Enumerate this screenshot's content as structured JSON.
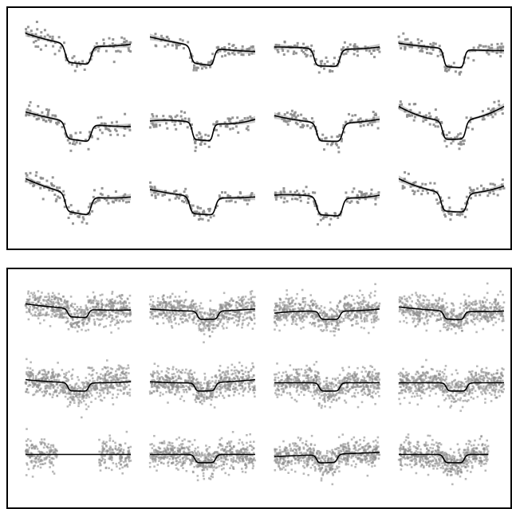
{
  "chart_data": [
    {
      "type": "scatter",
      "grid": false,
      "layout": "small-multiples",
      "rows": 3,
      "cols": 4,
      "x_range": [
        -1,
        1
      ],
      "colors": {
        "points": "#8a8a8a",
        "band": "#bdbdbd",
        "line": "#000000"
      },
      "subplots": [
        {
          "baseline": [
            0.2,
            -0.3,
            0.35,
            0.0
          ],
          "depth": 1.0,
          "center": 0.0,
          "width": 0.5,
          "noise": 0.25,
          "n": 100
        },
        {
          "baseline": [
            0.1,
            -0.4,
            0.15,
            0.0
          ],
          "depth": 0.95,
          "center": 0.0,
          "width": 0.45,
          "noise": 0.2,
          "n": 100
        },
        {
          "baseline": [
            0.0,
            -0.1,
            0.1,
            0.1
          ],
          "depth": 0.95,
          "center": 0.0,
          "width": 0.5,
          "noise": 0.22,
          "n": 100
        },
        {
          "baseline": [
            0.0,
            -0.2,
            0.1,
            0.0
          ],
          "depth": 1.0,
          "center": 0.05,
          "width": 0.4,
          "noise": 0.22,
          "n": 100
        },
        {
          "baseline": [
            0.0,
            -0.4,
            0.2,
            0.0
          ],
          "depth": 0.95,
          "center": 0.0,
          "width": 0.5,
          "noise": 0.22,
          "n": 100
        },
        {
          "baseline": [
            0.0,
            -0.25,
            0.15,
            0.3
          ],
          "depth": 0.95,
          "center": 0.0,
          "width": 0.4,
          "noise": 0.22,
          "n": 100
        },
        {
          "baseline": [
            0.0,
            -0.1,
            0.3,
            0.0
          ],
          "depth": 1.0,
          "center": 0.05,
          "width": 0.5,
          "noise": 0.25,
          "n": 100
        },
        {
          "baseline": [
            0.1,
            0.0,
            0.8,
            0.0
          ],
          "depth": 1.0,
          "center": 0.05,
          "width": 0.45,
          "noise": 0.25,
          "n": 100
        },
        {
          "baseline": [
            0.1,
            -0.5,
            0.4,
            0.0
          ],
          "depth": 1.0,
          "center": 0.0,
          "width": 0.5,
          "noise": 0.25,
          "n": 100
        },
        {
          "baseline": [
            0.0,
            -0.2,
            0.2,
            0.0
          ],
          "depth": 0.95,
          "center": 0.0,
          "width": 0.5,
          "noise": 0.2,
          "n": 100
        },
        {
          "baseline": [
            0.0,
            -0.2,
            0.1,
            0.2
          ],
          "depth": 1.0,
          "center": 0.05,
          "width": 0.5,
          "noise": 0.22,
          "n": 100
        },
        {
          "baseline": [
            0.2,
            -0.2,
            0.6,
            0.0
          ],
          "depth": 1.0,
          "center": 0.05,
          "width": 0.5,
          "noise": 0.25,
          "n": 100
        }
      ]
    },
    {
      "type": "scatter",
      "grid": false,
      "layout": "small-multiples",
      "rows": 3,
      "cols": 4,
      "x_range": [
        -1,
        1
      ],
      "colors": {
        "points": "#8a8a8a",
        "line": "#000000"
      },
      "subplots": [
        {
          "baseline": [
            0.1,
            -0.15,
            0.1,
            0.0
          ],
          "depth": 0.4,
          "center": 0.0,
          "width": 0.4,
          "noise": 0.35,
          "n": 600
        },
        {
          "baseline": [
            0.0,
            0.0,
            0.1,
            0.0
          ],
          "depth": 0.4,
          "center": 0.1,
          "width": 0.4,
          "noise": 0.35,
          "n": 600
        },
        {
          "baseline": [
            0.0,
            0.0,
            0.0,
            0.1
          ],
          "depth": 0.4,
          "center": 0.05,
          "width": 0.4,
          "noise": 0.35,
          "n": 600
        },
        {
          "baseline": [
            0.0,
            -0.1,
            0.1,
            0.0
          ],
          "depth": 0.4,
          "center": 0.05,
          "width": 0.4,
          "noise": 0.35,
          "n": 600
        },
        {
          "baseline": [
            0.0,
            -0.05,
            0.1,
            0.0
          ],
          "depth": 0.4,
          "center": 0.0,
          "width": 0.4,
          "noise": 0.35,
          "n": 600
        },
        {
          "baseline": [
            0.0,
            0.05,
            0.1,
            0.0
          ],
          "depth": 0.4,
          "center": 0.05,
          "width": 0.4,
          "noise": 0.35,
          "n": 600
        },
        {
          "baseline": [
            0.0,
            0.0,
            0.0,
            0.0
          ],
          "depth": 0.4,
          "center": 0.05,
          "width": 0.4,
          "noise": 0.35,
          "n": 600
        },
        {
          "baseline": [
            0.0,
            0.0,
            0.0,
            0.0
          ],
          "depth": 0.4,
          "center": 0.1,
          "width": 0.4,
          "noise": 0.35,
          "n": 600
        },
        {
          "baseline": [
            0.0,
            0.0,
            0.0,
            0.0
          ],
          "depth": 0.0,
          "center": 0.0,
          "width": 0.5,
          "noise": 0.35,
          "n": 500,
          "gap": [
            -0.4,
            0.4
          ],
          "gap_line": true
        },
        {
          "baseline": [
            0.0,
            0.0,
            0.0,
            0.0
          ],
          "depth": 0.4,
          "center": 0.05,
          "width": 0.4,
          "noise": 0.35,
          "n": 600
        },
        {
          "baseline": [
            0.0,
            0.1,
            0.0,
            0.0
          ],
          "depth": 0.4,
          "center": 0.0,
          "width": 0.4,
          "noise": 0.35,
          "n": 600
        },
        {
          "baseline": [
            0.0,
            0.0,
            0.0,
            0.0
          ],
          "depth": 0.4,
          "center": 0.05,
          "width": 0.4,
          "noise": 0.35,
          "n": 550,
          "x_max": 0.7
        }
      ]
    }
  ]
}
